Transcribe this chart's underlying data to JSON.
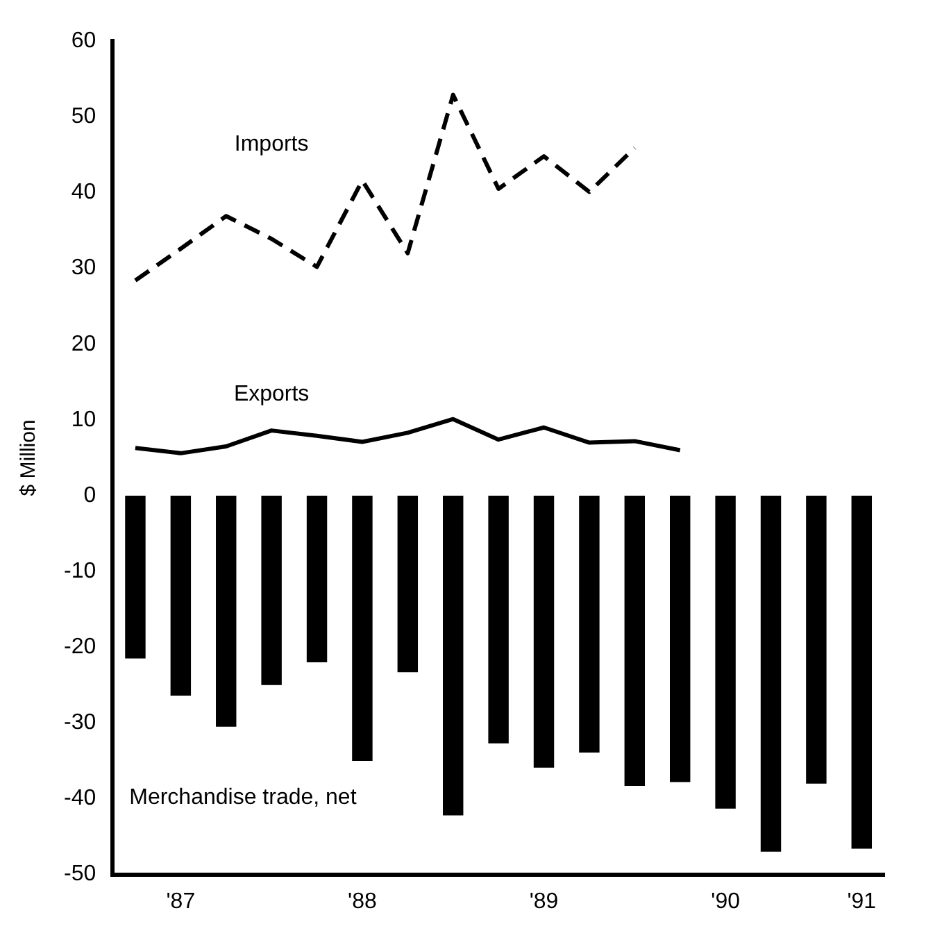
{
  "chart_data": {
    "type": "bar",
    "ylabel": "$ Million",
    "categories": [
      null,
      "'87",
      null,
      null,
      null,
      "'88",
      null,
      null,
      null,
      "'89",
      null,
      null,
      null,
      "'90",
      null,
      null,
      "'91"
    ],
    "series": [
      {
        "name": "Merchandise trade, net",
        "color": "#000000",
        "values": [
          -21.5,
          -26.4,
          -30.5,
          -25,
          -22,
          -35,
          -23.3,
          -42.2,
          -32.7,
          -35.9,
          -33.9,
          -38.3,
          -37.8,
          -41.3,
          -47,
          -38,
          -46.6
        ]
      },
      {
        "name": "Imports",
        "type": "line",
        "line_style": "dashed",
        "color": "#000000",
        "values": [
          28.4,
          32.6,
          36.9,
          33.9,
          30.2,
          41.6,
          32,
          52.9,
          40.5,
          44.8,
          40.1,
          45.9,
          null,
          null,
          null,
          null,
          null
        ]
      },
      {
        "name": "Exports",
        "type": "line",
        "line_style": "solid",
        "color": "#000000",
        "values": [
          6.3,
          5.6,
          6.5,
          8.6,
          7.9,
          7.1,
          8.3,
          10.1,
          7.4,
          9.0,
          7.0,
          7.2,
          6.0,
          null,
          null,
          null,
          null
        ]
      }
    ],
    "ylim": [
      -50,
      60
    ],
    "yticks": [
      -50,
      -40,
      -30,
      -20,
      -10,
      0,
      10,
      20,
      30,
      40,
      50,
      60
    ],
    "grid": false,
    "legend": false,
    "marker": "none"
  }
}
